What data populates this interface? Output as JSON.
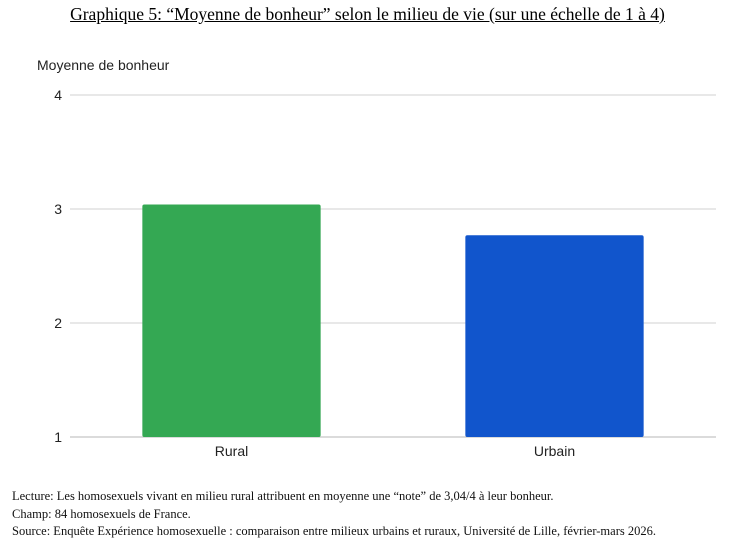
{
  "chart_data": {
    "type": "bar",
    "title": "Graphique 5: “Moyenne de bonheur” selon le milieu de vie (sur une échelle de 1 à 4)",
    "ylabel": "Moyenne de bonheur",
    "xlabel": "",
    "categories": [
      "Rural",
      "Urbain"
    ],
    "values": [
      3.04,
      2.77
    ],
    "ylim": [
      1,
      4
    ],
    "yticks": [
      "1",
      "2",
      "3",
      "4"
    ],
    "grid": true,
    "colors": [
      "#34a853",
      "#1155cc"
    ]
  },
  "notes": {
    "lecture": "Lecture: Les homosexuels vivant en milieu rural attribuent en moyenne une “note” de 3,04/4 à leur bonheur.",
    "champ": "Champ: 84 homosexuels de France.",
    "source": "Source: Enquête Expérience homosexuelle : comparaison entre milieux urbains et ruraux, Université de Lille, février-mars 2026."
  }
}
